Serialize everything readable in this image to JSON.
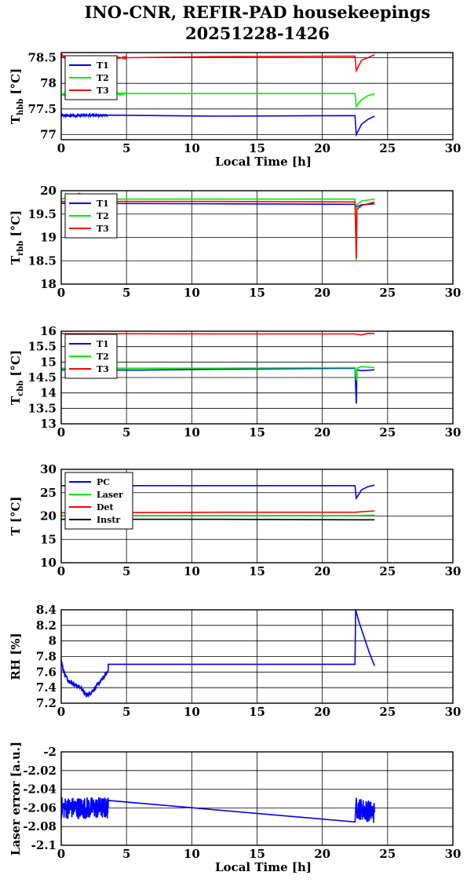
{
  "title": {
    "line1": "INO-CNR, REFIR-PAD housekeepings",
    "line2": "20251228-1426"
  },
  "colors": {
    "blue": "#0000ff",
    "green": "#00ee00",
    "red": "#ff0000",
    "black": "#000000"
  },
  "chart_data": [
    {
      "id": "tbbb",
      "type": "line",
      "ylabel": {
        "main": "T",
        "sub": "hbb",
        "rest": " [°C]"
      },
      "xlabel": "Local Time [h]",
      "xlim": [
        0,
        30
      ],
      "ylim": [
        76.9,
        78.6
      ],
      "xticks": [
        "0",
        "5",
        "10",
        "15",
        "20",
        "25",
        "30"
      ],
      "yticks": [
        {
          "v": 77,
          "t": "77"
        },
        {
          "v": 77.5,
          "t": "77.5"
        },
        {
          "v": 78,
          "t": "78"
        },
        {
          "v": 78.5,
          "t": "78.5"
        }
      ],
      "grid": true,
      "legend": "top-left",
      "series": [
        {
          "name": "T1",
          "color": "#0000ff",
          "x": [
            0,
            3.6,
            12,
            22.5,
            22.6,
            23.0,
            23.5,
            24.0
          ],
          "y": [
            77.37,
            77.38,
            77.36,
            77.37,
            77.0,
            77.2,
            77.3,
            77.36
          ],
          "noise": 0.02,
          "noise_until": 3.6
        },
        {
          "name": "T2",
          "color": "#00ee00",
          "x": [
            0,
            5,
            12,
            22.5,
            22.6,
            23.0,
            23.5,
            24.0
          ],
          "y": [
            77.78,
            77.8,
            77.8,
            77.8,
            77.55,
            77.68,
            77.76,
            77.8
          ],
          "noise": 0.015,
          "noise_until": 3.6
        },
        {
          "name": "T3",
          "color": "#ff0000",
          "x": [
            0,
            0.2,
            5,
            12,
            22.5,
            22.6,
            23.0,
            23.5,
            24.0
          ],
          "y": [
            78.56,
            78.51,
            78.5,
            78.52,
            78.53,
            78.25,
            78.45,
            78.5,
            78.56
          ],
          "noise": 0.01,
          "noise_until": 0.3
        }
      ]
    },
    {
      "id": "trbb",
      "type": "line",
      "ylabel": {
        "main": "T",
        "sub": "rbb",
        "rest": " [°C]"
      },
      "xlabel": "",
      "xlim": [
        0,
        30
      ],
      "ylim": [
        18,
        20
      ],
      "xticks": [
        "0",
        "5",
        "10",
        "15",
        "20",
        "25",
        "30"
      ],
      "yticks": [
        {
          "v": 18,
          "t": "18"
        },
        {
          "v": 18.5,
          "t": "18.5"
        },
        {
          "v": 19,
          "t": "19"
        },
        {
          "v": 19.5,
          "t": "19.5"
        },
        {
          "v": 20,
          "t": "20"
        }
      ],
      "grid": true,
      "legend": "top-left",
      "series": [
        {
          "name": "T1",
          "color": "#0000ff",
          "x": [
            0,
            12,
            22.5,
            22.6,
            23.0,
            24.0
          ],
          "y": [
            19.73,
            19.72,
            19.71,
            19.65,
            19.7,
            19.72
          ],
          "noise": 0.0,
          "noise_until": 0
        },
        {
          "name": "T2",
          "color": "#00ee00",
          "x": [
            0,
            1.0,
            1.4,
            2.0,
            12,
            22.5,
            22.6,
            22.65,
            23.0,
            24.0
          ],
          "y": [
            19.82,
            19.9,
            19.95,
            19.82,
            19.82,
            19.82,
            18.5,
            19.7,
            19.78,
            19.82
          ],
          "noise": 0.0,
          "noise_until": 0
        },
        {
          "name": "T3",
          "color": "#ff0000",
          "x": [
            0,
            12,
            22.5,
            22.6,
            22.65,
            23.0,
            24.0
          ],
          "y": [
            19.77,
            19.77,
            19.76,
            18.55,
            19.6,
            19.68,
            19.76
          ],
          "noise": 0.0,
          "noise_until": 0
        }
      ]
    },
    {
      "id": "tcbb",
      "type": "line",
      "ylabel": {
        "main": "T",
        "sub": "cbb",
        "rest": " [°C]"
      },
      "xlabel": "",
      "xlim": [
        0,
        30
      ],
      "ylim": [
        13,
        16
      ],
      "xticks": [
        "0",
        "5",
        "10",
        "15",
        "20",
        "25",
        "30"
      ],
      "yticks": [
        {
          "v": 13,
          "t": "13"
        },
        {
          "v": 13.5,
          "t": "13.5"
        },
        {
          "v": 14,
          "t": "14"
        },
        {
          "v": 14.5,
          "t": "14.5"
        },
        {
          "v": 15,
          "t": "15"
        },
        {
          "v": 15.5,
          "t": "15.5"
        },
        {
          "v": 16,
          "t": "16"
        }
      ],
      "grid": true,
      "legend": "top-left",
      "series": [
        {
          "name": "T1",
          "color": "#0000ff",
          "x": [
            0,
            6,
            12,
            22.5,
            22.6,
            22.65,
            23.0,
            24.0
          ],
          "y": [
            14.75,
            14.74,
            14.77,
            14.8,
            13.65,
            14.75,
            14.72,
            14.75
          ],
          "noise": 0.0,
          "noise_until": 0
        },
        {
          "name": "T2",
          "color": "#00ee00",
          "x": [
            0,
            12,
            22.5,
            22.6,
            22.65,
            23.0,
            24.0
          ],
          "y": [
            14.8,
            14.8,
            14.82,
            14.4,
            14.8,
            14.85,
            14.82
          ],
          "noise": 0.0,
          "noise_until": 0
        },
        {
          "name": "T3",
          "color": "#ff0000",
          "x": [
            0,
            12,
            22.5,
            23.0,
            23.5,
            24.0
          ],
          "y": [
            15.92,
            15.91,
            15.91,
            15.88,
            15.93,
            15.92
          ],
          "noise": 0.0,
          "noise_until": 0
        }
      ]
    },
    {
      "id": "tsys",
      "type": "line",
      "ylabel": {
        "main": "T [°C]",
        "sub": "",
        "rest": ""
      },
      "xlabel": "",
      "xlim": [
        0,
        30
      ],
      "ylim": [
        10,
        30
      ],
      "xticks": [
        "0",
        "5",
        "10",
        "15",
        "20",
        "25",
        "30"
      ],
      "yticks": [
        {
          "v": 10,
          "t": "10"
        },
        {
          "v": 15,
          "t": "15"
        },
        {
          "v": 20,
          "t": "20"
        },
        {
          "v": 25,
          "t": "25"
        },
        {
          "v": 30,
          "t": "30"
        }
      ],
      "grid": true,
      "legend": "top-left",
      "series": [
        {
          "name": "PC",
          "color": "#0000ff",
          "x": [
            0,
            12,
            22.5,
            22.6,
            23.0,
            23.5,
            24.0
          ],
          "y": [
            26.5,
            26.5,
            26.5,
            23.8,
            25.6,
            26.3,
            26.6
          ],
          "noise": 0.0,
          "noise_until": 0
        },
        {
          "name": "Laser",
          "color": "#00ee00",
          "x": [
            0,
            12,
            22.5,
            24.0
          ],
          "y": [
            20.1,
            20.1,
            20.1,
            20.2
          ],
          "noise": 0.0,
          "noise_until": 0
        },
        {
          "name": "Det",
          "color": "#ff0000",
          "x": [
            0,
            12,
            22.5,
            23.0,
            24.0
          ],
          "y": [
            20.7,
            20.8,
            20.8,
            20.9,
            21.1
          ],
          "noise": 0.0,
          "noise_until": 0
        },
        {
          "name": "Instr",
          "color": "#000000",
          "x": [
            0,
            12,
            22.5,
            24.0
          ],
          "y": [
            19.3,
            19.3,
            19.2,
            19.2
          ],
          "noise": 0.0,
          "noise_until": 0
        }
      ]
    },
    {
      "id": "rh",
      "type": "line",
      "ylabel": {
        "main": "RH [%]",
        "sub": "",
        "rest": ""
      },
      "xlabel": "",
      "xlim": [
        0,
        30
      ],
      "ylim": [
        7.2,
        8.4
      ],
      "xticks": [
        "0",
        "5",
        "10",
        "15",
        "20",
        "25",
        "30"
      ],
      "yticks": [
        {
          "v": 7.2,
          "t": "7.2"
        },
        {
          "v": 7.4,
          "t": "7.4"
        },
        {
          "v": 7.6,
          "t": "7.6"
        },
        {
          "v": 7.8,
          "t": "7.8"
        },
        {
          "v": 8,
          "t": "8"
        },
        {
          "v": 8.2,
          "t": "8.2"
        },
        {
          "v": 8.4,
          "t": "8.4"
        }
      ],
      "grid": true,
      "legend": "",
      "series": [
        {
          "name": "",
          "color": "#0000ff",
          "x": [
            0,
            0.2,
            0.5,
            1.0,
            1.5,
            1.9,
            2.3,
            2.8,
            3.2,
            3.6,
            3.6,
            12,
            22.5,
            22.55,
            22.8,
            23.2,
            23.6,
            24.0
          ],
          "y": [
            7.75,
            7.6,
            7.5,
            7.44,
            7.4,
            7.3,
            7.34,
            7.44,
            7.52,
            7.62,
            7.7,
            7.7,
            7.7,
            8.4,
            8.25,
            8.05,
            7.85,
            7.68
          ],
          "noise": 0.025,
          "noise_until": 3.6
        }
      ]
    },
    {
      "id": "laser",
      "type": "line",
      "ylabel": {
        "main": "Laser error [a.u.]",
        "sub": "",
        "rest": ""
      },
      "xlabel": "Local Time [h]",
      "xlim": [
        0,
        30
      ],
      "ylim": [
        -2.1,
        -2.0
      ],
      "xticks": [
        "0",
        "5",
        "10",
        "15",
        "20",
        "25",
        "30"
      ],
      "yticks": [
        {
          "v": -2.1,
          "t": "-2.1"
        },
        {
          "v": -2.08,
          "t": "-2.08"
        },
        {
          "v": -2.06,
          "t": "-2.06"
        },
        {
          "v": -2.04,
          "t": "-2.04"
        },
        {
          "v": -2.02,
          "t": "-2.02"
        },
        {
          "v": -2,
          "t": "-2"
        }
      ],
      "grid": true,
      "legend": "",
      "series": [
        {
          "name": "",
          "color": "#0000ff",
          "x": [
            0,
            3.6,
            3.6,
            22.5,
            22.6,
            24.0
          ],
          "y": [
            -2.06,
            -2.06,
            -2.052,
            -2.075,
            -2.06,
            -2.065
          ],
          "noise": 0.012,
          "noise_until": 3.6,
          "noise_from2": 22.6,
          "noise_until2": 24.0
        }
      ]
    }
  ]
}
